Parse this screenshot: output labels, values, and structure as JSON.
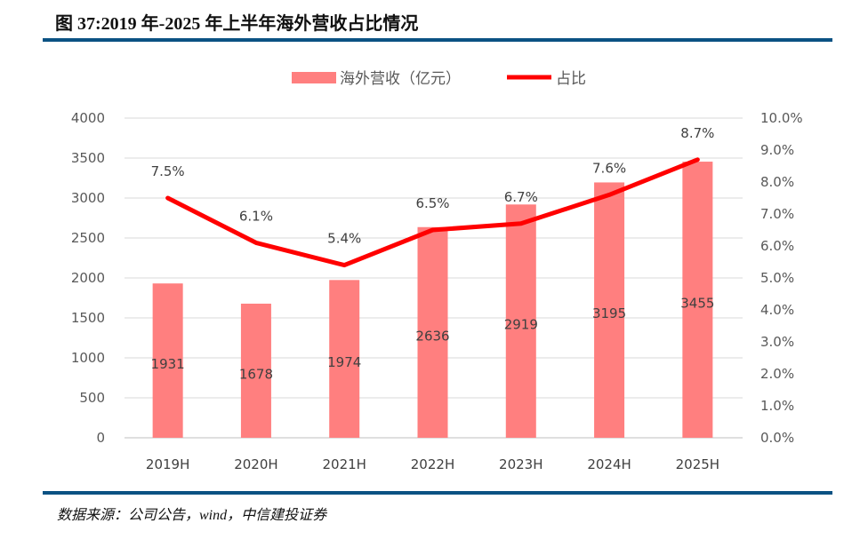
{
  "title": "图 37:2019 年-2025 年上半年海外营收占比情况",
  "source": "数据来源：公司公告，wind，中信建投证券",
  "colors": {
    "bar": "#ff7f7f",
    "line": "#ff0000",
    "rule": "#0b5283"
  },
  "chart_data": {
    "type": "bar+line",
    "categories": [
      "2019H",
      "2020H",
      "2021H",
      "2022H",
      "2023H",
      "2024H",
      "2025H"
    ],
    "series": [
      {
        "name": "海外营收（亿元）",
        "type": "bar",
        "axis": "left",
        "values": [
          1931,
          1678,
          1974,
          2636,
          2919,
          3195,
          3455
        ],
        "labels": [
          "1931",
          "1678",
          "1974",
          "2636",
          "2919",
          "3195",
          "3455"
        ]
      },
      {
        "name": "占比",
        "type": "line",
        "axis": "right",
        "values": [
          7.5,
          6.1,
          5.4,
          6.5,
          6.7,
          7.6,
          8.7
        ],
        "labels": [
          "7.5%",
          "6.1%",
          "5.4%",
          "6.5%",
          "6.7%",
          "7.6%",
          "8.7%"
        ]
      }
    ],
    "ylim_left": [
      0,
      4000
    ],
    "yticks_left": [
      "0",
      "500",
      "1000",
      "1500",
      "2000",
      "2500",
      "3000",
      "3500",
      "4000"
    ],
    "ylim_right": [
      0,
      10
    ],
    "yticks_right": [
      "0.0%",
      "1.0%",
      "2.0%",
      "3.0%",
      "4.0%",
      "5.0%",
      "6.0%",
      "7.0%",
      "8.0%",
      "9.0%",
      "10.0%"
    ],
    "grid": true,
    "legend": "top"
  }
}
